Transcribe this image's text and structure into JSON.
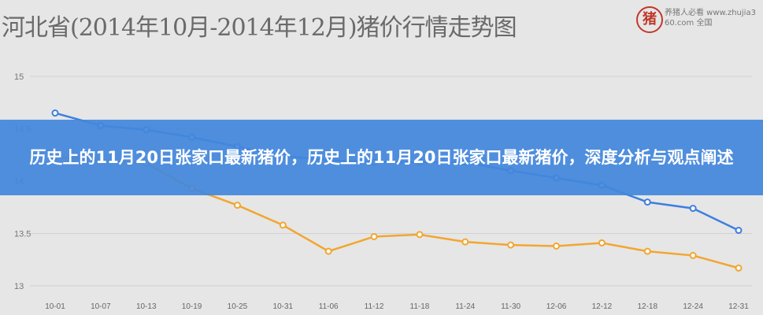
{
  "chart_data": {
    "type": "line",
    "title": "河北省(2014年10月-2014年12月)猪价行情走势图",
    "categories": [
      "10-01",
      "10-07",
      "10-13",
      "10-19",
      "10-25",
      "10-31",
      "11-06",
      "11-12",
      "11-18",
      "11-24",
      "11-30",
      "12-06",
      "12-12",
      "12-18",
      "12-24",
      "12-31"
    ],
    "series": [
      {
        "color": "#3d7fe0",
        "values": [
          14.65,
          14.53,
          14.49,
          14.42,
          14.33,
          14.24,
          14.2,
          14.18,
          14.18,
          14.18,
          14.1,
          14.03,
          13.96,
          13.8,
          13.74,
          13.53
        ]
      },
      {
        "color": "#f2a630",
        "values": [
          14.23,
          14.2,
          14.17,
          13.93,
          13.77,
          13.58,
          13.33,
          13.47,
          13.49,
          13.42,
          13.39,
          13.38,
          13.41,
          13.33,
          13.29,
          13.17
        ]
      }
    ],
    "yticks": [
      13,
      13.5,
      14,
      14.5,
      15
    ],
    "ytick_labels": [
      "13",
      "13.5",
      "14",
      "14.5",
      "15"
    ],
    "ylim": [
      13,
      15
    ],
    "grid": true
  },
  "logo": {
    "seal": "猪",
    "text": "养猪人必看 www.zhujia360.com 全国"
  },
  "banner": {
    "text": "历史上的11月20日张家口最新猪价，历史上的11月20日张家口最新猪价，深度分析与观点阐述"
  }
}
